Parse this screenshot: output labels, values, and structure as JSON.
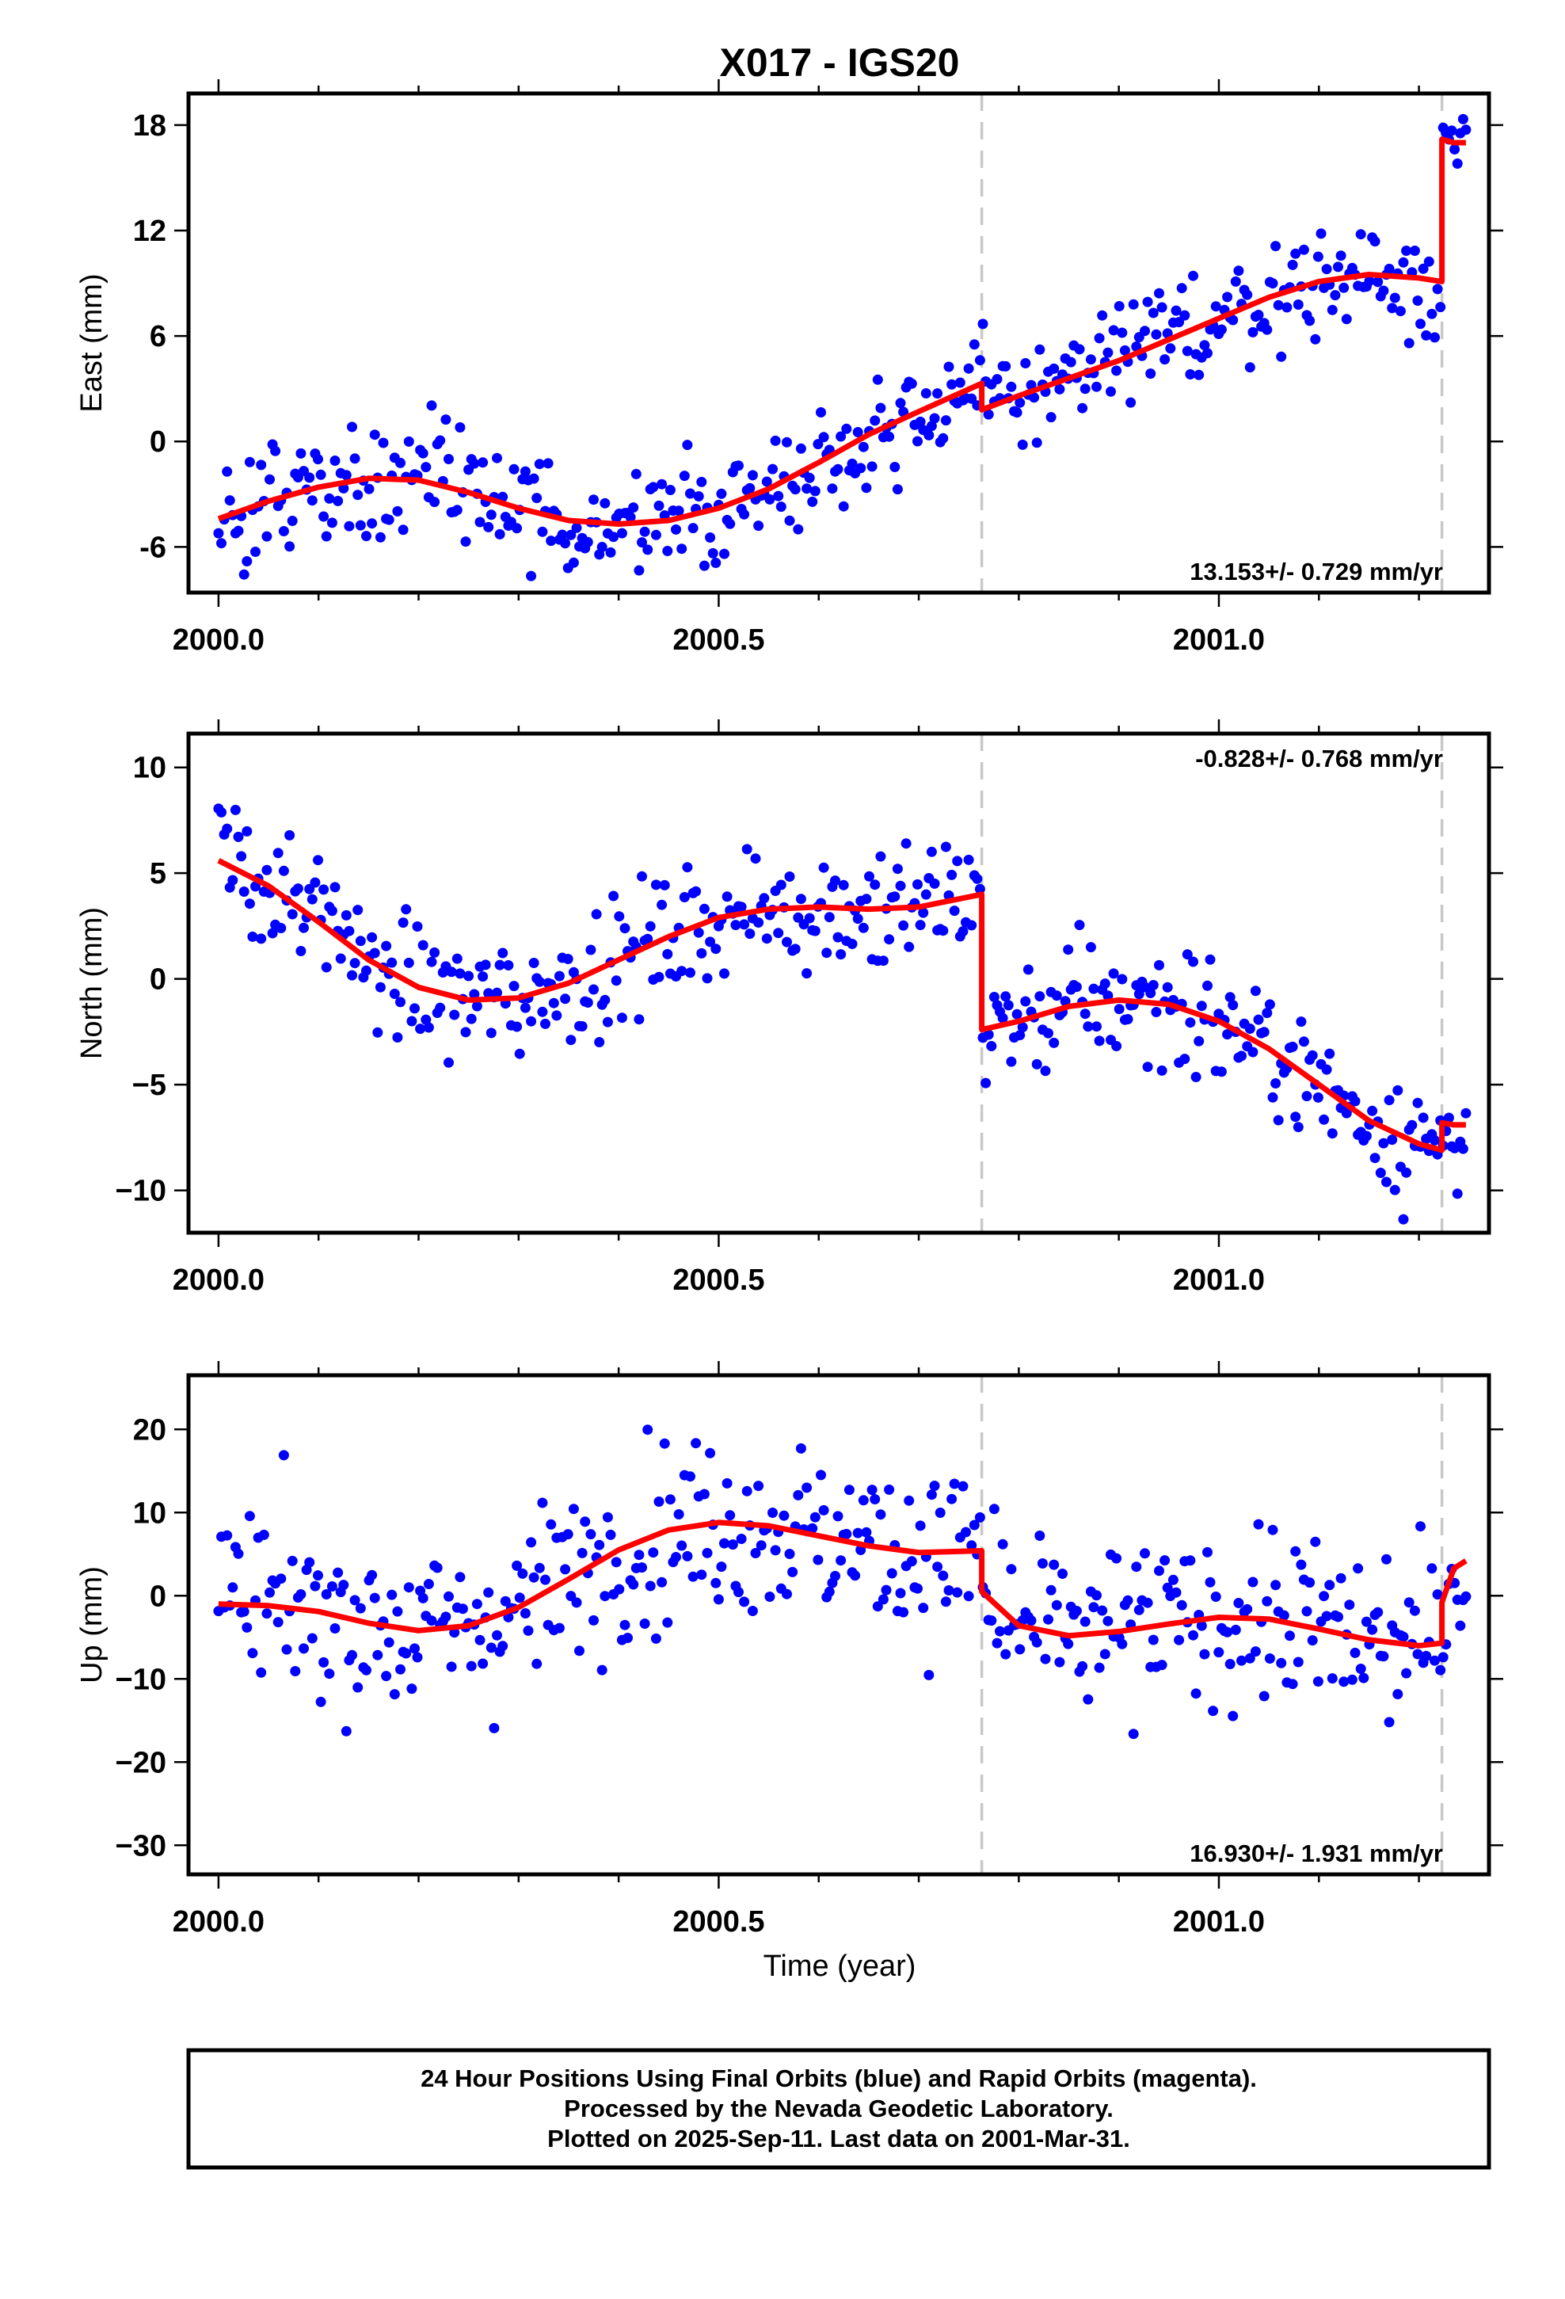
{
  "chart_data": {
    "type": "scatter",
    "title": "X017 - IGS20",
    "xlabel": "Time (year)",
    "xlim": [
      1999.97,
      2001.27
    ],
    "x_ticks": [
      2000.0,
      2000.5,
      2001.0
    ],
    "x_tick_labels": [
      "2000.0",
      "2000.5",
      "2001.0"
    ],
    "breaks": [
      2000.763,
      2001.223
    ],
    "data_end": 2001.247,
    "colors": {
      "points": "#0000ff",
      "fit": "#ff0000",
      "breaks": "#c8c8c8"
    },
    "panels": [
      {
        "component": "east",
        "ylabel": "East (mm)",
        "ylim": [
          -8.6,
          19.8
        ],
        "y_ticks": [
          -6,
          0,
          6,
          12,
          18
        ],
        "y_tick_labels": [
          "-6",
          "0",
          "6",
          "12",
          "18"
        ],
        "rate_label": "13.153+/- 0.729 mm/yr",
        "rate_position": "bottom-right",
        "fit": {
          "x": [
            2000.0,
            2000.05,
            2000.1,
            2000.15,
            2000.2,
            2000.25,
            2000.3,
            2000.35,
            2000.4,
            2000.45,
            2000.5,
            2000.55,
            2000.6,
            2000.65,
            2000.7,
            2000.763,
            2000.763,
            2000.8,
            2000.85,
            2000.9,
            2000.95,
            2001.0,
            2001.05,
            2001.1,
            2001.15,
            2001.2,
            2001.223,
            2001.223,
            2001.235,
            2001.247
          ],
          "y": [
            -4.4,
            -3.4,
            -2.6,
            -2.1,
            -2.2,
            -2.9,
            -3.8,
            -4.5,
            -4.7,
            -4.5,
            -3.8,
            -2.7,
            -1.2,
            0.4,
            1.7,
            3.3,
            1.8,
            2.6,
            3.6,
            4.6,
            5.8,
            7.0,
            8.2,
            9.1,
            9.5,
            9.3,
            9.1,
            17.2,
            17.0,
            17.0
          ]
        }
      },
      {
        "component": "north",
        "ylabel": "North (mm)",
        "ylim": [
          -12.0,
          11.6
        ],
        "y_ticks": [
          -10,
          -5,
          0,
          5,
          10
        ],
        "y_tick_labels": [
          "−10",
          "−5",
          "0",
          "5",
          "10"
        ],
        "rate_label": "-0.828+/- 0.768 mm/yr",
        "rate_position": "top-right",
        "fit": {
          "x": [
            2000.0,
            2000.05,
            2000.1,
            2000.15,
            2000.2,
            2000.25,
            2000.3,
            2000.35,
            2000.4,
            2000.45,
            2000.5,
            2000.55,
            2000.6,
            2000.65,
            2000.7,
            2000.763,
            2000.763,
            2000.8,
            2000.85,
            2000.9,
            2000.95,
            2001.0,
            2001.05,
            2001.1,
            2001.15,
            2001.2,
            2001.223,
            2001.223,
            2001.235,
            2001.247
          ],
          "y": [
            5.6,
            4.4,
            2.7,
            0.9,
            -0.4,
            -1.0,
            -0.9,
            -0.2,
            0.9,
            2.0,
            2.9,
            3.3,
            3.4,
            3.3,
            3.4,
            4.0,
            -2.4,
            -2.0,
            -1.3,
            -1.0,
            -1.2,
            -2.0,
            -3.3,
            -5.0,
            -6.7,
            -7.8,
            -8.1,
            -6.8,
            -6.9,
            -6.9
          ]
        }
      },
      {
        "component": "up",
        "ylabel": "Up (mm)",
        "ylim": [
          -33.5,
          26.5
        ],
        "y_ticks": [
          -30,
          -20,
          -10,
          0,
          10,
          20
        ],
        "y_tick_labels": [
          "−30",
          "−20",
          "−10",
          "0",
          "10",
          "20"
        ],
        "rate_label": "16.930+/- 1.931 mm/yr",
        "rate_position": "bottom-right",
        "fit": {
          "x": [
            2000.0,
            2000.05,
            2000.1,
            2000.15,
            2000.2,
            2000.25,
            2000.3,
            2000.35,
            2000.4,
            2000.45,
            2000.5,
            2000.55,
            2000.6,
            2000.65,
            2000.7,
            2000.763,
            2000.763,
            2000.8,
            2000.85,
            2000.9,
            2000.95,
            2001.0,
            2001.05,
            2001.1,
            2001.15,
            2001.2,
            2001.223,
            2001.223,
            2001.235,
            2001.247
          ],
          "y": [
            -1.0,
            -1.2,
            -1.9,
            -3.3,
            -4.2,
            -3.6,
            -1.4,
            2.0,
            5.5,
            7.9,
            8.8,
            8.4,
            7.2,
            6.0,
            5.2,
            5.4,
            0.5,
            -3.6,
            -4.8,
            -4.3,
            -3.4,
            -2.6,
            -2.8,
            -4.0,
            -5.3,
            -6.0,
            -5.7,
            -0.8,
            3.3,
            4.2
          ]
        }
      }
    ]
  },
  "footer": {
    "line1": "24 Hour Positions Using Final Orbits (blue) and Rapid Orbits (magenta).",
    "line2": "Processed by the Nevada Geodetic Laboratory.",
    "line3": "Plotted on 2025-Sep-11. Last data on 2001-Mar-31."
  }
}
